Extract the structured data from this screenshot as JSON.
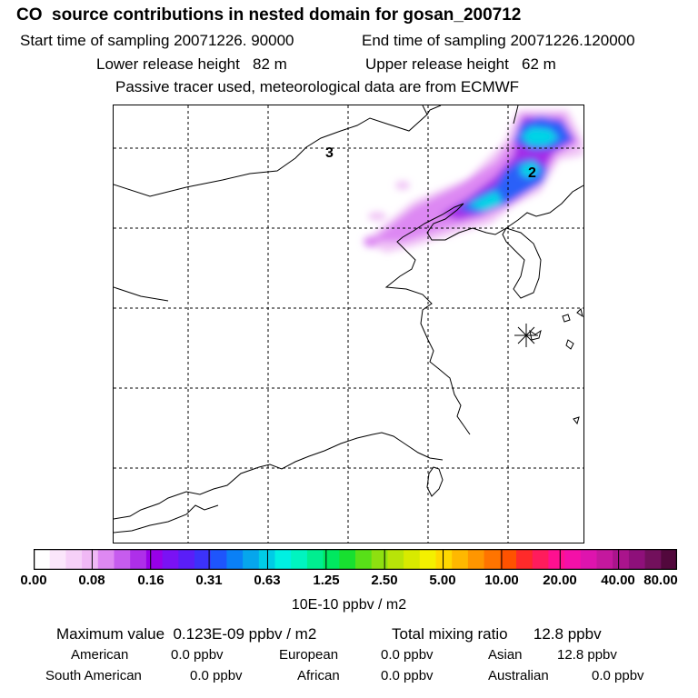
{
  "header": {
    "title": "CO  source contributions in nested domain for gosan_200712",
    "start_sampling": "Start time of sampling 20071226. 90000",
    "end_sampling": "End time of sampling 20071226.120000",
    "lower_release": "Lower release height   82 m",
    "upper_release": "Upper release height   62 m",
    "tracer_note": "Passive tracer used, meteorological data are from ECMWF"
  },
  "map": {
    "labels": [
      "3",
      "2"
    ],
    "station_marker": "asterisk-marker"
  },
  "colorbar": {
    "ticks": [
      "0.00",
      "0.08",
      "0.16",
      "0.31",
      "0.63",
      "1.25",
      "2.50",
      "5.00",
      "10.00",
      "20.00",
      "40.00",
      "80.00"
    ],
    "colors": [
      "#ffffff",
      "#fbe6fb",
      "#f6d0f8",
      "#f0b8f5",
      "#de88f2",
      "#c65cee",
      "#ae2fe9",
      "#9800e8",
      "#7a12f4",
      "#5a1ef8",
      "#3c32fa",
      "#1e55fc",
      "#0a80f6",
      "#06a6ec",
      "#00cce6",
      "#00f0e2",
      "#00f4c0",
      "#00ee90",
      "#00e860",
      "#18e030",
      "#58e018",
      "#8ee010",
      "#b8e408",
      "#d8ea00",
      "#f4f000",
      "#ffd800",
      "#ffb800",
      "#ff9600",
      "#ff7400",
      "#ff5200",
      "#ff2a2a",
      "#ff1c5c",
      "#ff1090",
      "#f410a8",
      "#de14ae",
      "#c4189e",
      "#aa148c",
      "#8e107a",
      "#72105c",
      "#52083c"
    ],
    "units": "10E-10 ppbv / m2"
  },
  "summary": {
    "max_value": "Maximum value  0.123E-09 ppbv / m2",
    "total_mixing": "Total mixing ratio      12.8 ppbv",
    "rows": [
      [
        {
          "name": "American",
          "value": "0.0 ppbv"
        },
        {
          "name": "European",
          "value": "0.0 ppbv"
        },
        {
          "name": "Asian",
          "value": "12.8 ppbv"
        }
      ],
      [
        {
          "name": "South American",
          "value": "0.0 ppbv"
        },
        {
          "name": "African",
          "value": "0.0 ppbv"
        },
        {
          "name": "Australian",
          "value": "0.0 ppbv"
        }
      ]
    ]
  }
}
